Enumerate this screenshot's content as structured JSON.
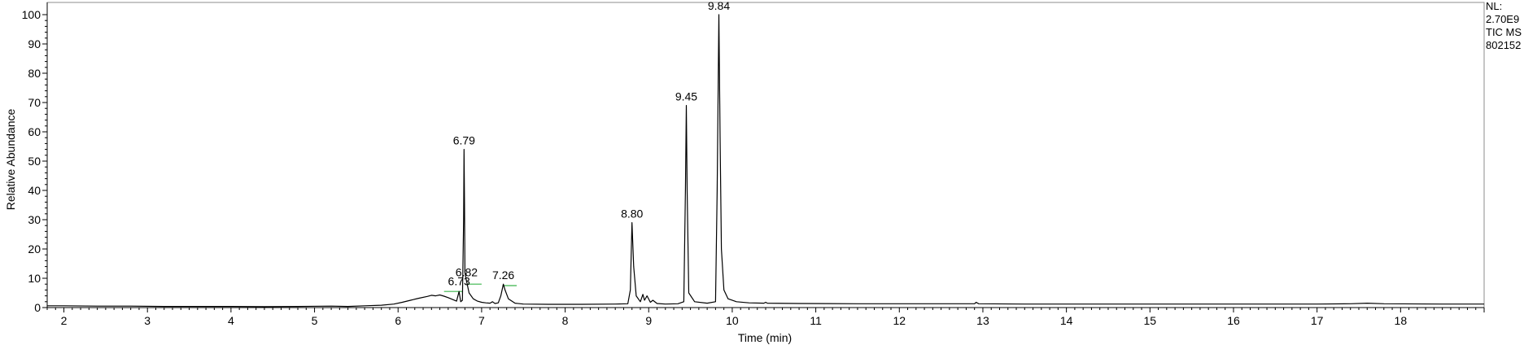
{
  "chart_data": {
    "type": "line",
    "xlabel": "Time (min)",
    "ylabel": "Relative Abundance",
    "xlim": [
      1.8,
      19.0
    ],
    "ylim": [
      0,
      100
    ],
    "x_ticks": [
      "2",
      "3",
      "4",
      "5",
      "6",
      "7",
      "8",
      "9",
      "10",
      "11",
      "12",
      "13",
      "14",
      "15",
      "16",
      "17",
      "18"
    ],
    "y_ticks": [
      "0",
      "10",
      "20",
      "30",
      "40",
      "50",
      "60",
      "70",
      "80",
      "90",
      "100"
    ],
    "info_lines": [
      "NL:",
      "2.70E9",
      "TIC  MS",
      "802152"
    ],
    "peak_labels": [
      {
        "x": 6.73,
        "y": 6.0,
        "text": "6.73"
      },
      {
        "x": 6.79,
        "y": 54.0,
        "text": "6.79"
      },
      {
        "x": 6.82,
        "y": 9.0,
        "text": "6.82"
      },
      {
        "x": 7.26,
        "y": 8.0,
        "text": "7.26"
      },
      {
        "x": 8.8,
        "y": 29.0,
        "text": "8.80"
      },
      {
        "x": 9.45,
        "y": 69.0,
        "text": "9.45"
      },
      {
        "x": 9.84,
        "y": 100.0,
        "text": "9.84"
      }
    ],
    "series": [
      {
        "values": [
          [
            1.8,
            0.6
          ],
          [
            2.0,
            0.6
          ],
          [
            2.4,
            0.5
          ],
          [
            2.8,
            0.5
          ],
          [
            3.2,
            0.4
          ],
          [
            3.6,
            0.4
          ],
          [
            4.0,
            0.4
          ],
          [
            4.4,
            0.3
          ],
          [
            4.8,
            0.4
          ],
          [
            5.2,
            0.5
          ],
          [
            5.4,
            0.4
          ],
          [
            5.6,
            0.6
          ],
          [
            5.8,
            0.8
          ],
          [
            5.95,
            1.2
          ],
          [
            6.05,
            1.8
          ],
          [
            6.15,
            2.5
          ],
          [
            6.25,
            3.2
          ],
          [
            6.35,
            3.8
          ],
          [
            6.4,
            4.2
          ],
          [
            6.45,
            4.0
          ],
          [
            6.5,
            4.3
          ],
          [
            6.55,
            3.9
          ],
          [
            6.6,
            3.4
          ],
          [
            6.65,
            2.8
          ],
          [
            6.7,
            2.2
          ],
          [
            6.73,
            5.5
          ],
          [
            6.75,
            2.0
          ],
          [
            6.77,
            2.5
          ],
          [
            6.785,
            30.0
          ],
          [
            6.79,
            54.0
          ],
          [
            6.795,
            35.0
          ],
          [
            6.8,
            12.0
          ],
          [
            6.82,
            9.0
          ],
          [
            6.85,
            5.0
          ],
          [
            6.9,
            3.0
          ],
          [
            6.95,
            2.2
          ],
          [
            7.0,
            1.8
          ],
          [
            7.05,
            1.6
          ],
          [
            7.1,
            1.5
          ],
          [
            7.13,
            2.0
          ],
          [
            7.16,
            1.4
          ],
          [
            7.2,
            1.6
          ],
          [
            7.23,
            4.0
          ],
          [
            7.26,
            8.0
          ],
          [
            7.28,
            6.0
          ],
          [
            7.32,
            3.0
          ],
          [
            7.4,
            1.5
          ],
          [
            7.5,
            1.2
          ],
          [
            7.8,
            1.1
          ],
          [
            8.2,
            1.1
          ],
          [
            8.6,
            1.2
          ],
          [
            8.75,
            1.3
          ],
          [
            8.78,
            6.0
          ],
          [
            8.8,
            29.0
          ],
          [
            8.82,
            14.0
          ],
          [
            8.85,
            4.0
          ],
          [
            8.9,
            2.0
          ],
          [
            8.93,
            4.5
          ],
          [
            8.95,
            2.5
          ],
          [
            8.98,
            4.0
          ],
          [
            9.02,
            1.8
          ],
          [
            9.05,
            2.5
          ],
          [
            9.1,
            1.4
          ],
          [
            9.2,
            1.2
          ],
          [
            9.35,
            1.3
          ],
          [
            9.42,
            2.0
          ],
          [
            9.44,
            40.0
          ],
          [
            9.45,
            69.0
          ],
          [
            9.46,
            40.0
          ],
          [
            9.48,
            5.0
          ],
          [
            9.55,
            2.0
          ],
          [
            9.7,
            1.5
          ],
          [
            9.8,
            2.0
          ],
          [
            9.82,
            40.0
          ],
          [
            9.84,
            100.0
          ],
          [
            9.855,
            58.0
          ],
          [
            9.87,
            20.0
          ],
          [
            9.9,
            6.0
          ],
          [
            9.95,
            3.0
          ],
          [
            10.05,
            2.0
          ],
          [
            10.2,
            1.6
          ],
          [
            10.38,
            1.5
          ],
          [
            10.4,
            1.8
          ],
          [
            10.42,
            1.5
          ],
          [
            10.8,
            1.4
          ],
          [
            11.5,
            1.3
          ],
          [
            12.0,
            1.3
          ],
          [
            12.5,
            1.3
          ],
          [
            12.9,
            1.3
          ],
          [
            12.92,
            1.8
          ],
          [
            12.95,
            1.3
          ],
          [
            13.5,
            1.2
          ],
          [
            14.0,
            1.2
          ],
          [
            15.0,
            1.2
          ],
          [
            16.0,
            1.2
          ],
          [
            17.0,
            1.2
          ],
          [
            17.4,
            1.3
          ],
          [
            17.6,
            1.5
          ],
          [
            17.8,
            1.3
          ],
          [
            18.5,
            1.2
          ],
          [
            19.0,
            1.2
          ]
        ],
        "color": "#000000"
      }
    ],
    "baseline_markers": [
      {
        "x1": 6.55,
        "x2": 6.77,
        "y": 5.5,
        "color": "#39b54a"
      },
      {
        "x1": 6.83,
        "x2": 7.0,
        "y": 8.0,
        "color": "#39b54a"
      },
      {
        "x1": 7.25,
        "x2": 7.42,
        "y": 7.5,
        "color": "#39b54a"
      }
    ]
  }
}
